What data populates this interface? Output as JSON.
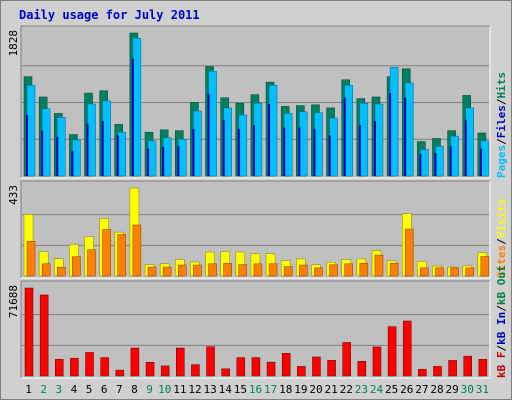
{
  "chart_data": {
    "type": "bar",
    "title": "Daily usage for July 2011",
    "categories": [
      "1",
      "2",
      "3",
      "4",
      "5",
      "6",
      "7",
      "8",
      "9",
      "10",
      "11",
      "12",
      "13",
      "14",
      "15",
      "16",
      "17",
      "18",
      "19",
      "20",
      "21",
      "22",
      "23",
      "24",
      "25",
      "26",
      "27",
      "28",
      "29",
      "30",
      "31"
    ],
    "weekend_days": [
      "2",
      "3",
      "9",
      "10",
      "16",
      "17",
      "23",
      "24",
      "30",
      "31"
    ],
    "colors": {
      "hits": "#008060",
      "files": "#0000c0",
      "pages": "#00c0ff",
      "visits": "#ffff00",
      "sites": "#ff8000",
      "kb_in": "#ff0000",
      "kb_out": "#008040",
      "kb_f": "#c00000",
      "weekday_label": "#000000",
      "weekend_label": "#00805c",
      "title": "#0000cc",
      "panel_bg": "#c0c0c0",
      "frame_bg": "#cfd0cf"
    },
    "panels": [
      {
        "name": "hits-files-pages",
        "ymax_label": "1828",
        "ylim": [
          0,
          1828
        ],
        "legend": [
          {
            "text": "Pages",
            "color": "#00c0ff"
          },
          {
            "text": "Files",
            "color": "#0000c0"
          },
          {
            "text": "Hits",
            "color": "#008060"
          }
        ],
        "series": [
          {
            "name": "Hits",
            "values": [
              1270,
              1010,
              800,
              530,
              1060,
              1090,
              660,
              1828,
              560,
              590,
              580,
              940,
              1400,
              1000,
              930,
              1040,
              1200,
              890,
              900,
              910,
              870,
              1230,
              990,
              1010,
              1270,
              1370,
              440,
              480,
              580,
              1030,
              550
            ]
          },
          {
            "name": "Files",
            "values": [
              780,
              580,
              500,
              320,
              670,
              700,
              520,
              1500,
              350,
              370,
              380,
              600,
              1050,
              720,
              600,
              650,
              920,
              620,
              620,
              600,
              520,
              1000,
              650,
              700,
              1060,
              1000,
              280,
              290,
              380,
              720,
              350
            ]
          },
          {
            "name": "Pages",
            "values": [
              1160,
              860,
              750,
              460,
              920,
              960,
              560,
              1760,
              450,
              490,
              470,
              830,
              1340,
              870,
              780,
              930,
              1160,
              800,
              820,
              810,
              740,
              1160,
              930,
              920,
              1390,
              1190,
              340,
              380,
              510,
              870,
              450
            ]
          }
        ]
      },
      {
        "name": "visits-sites",
        "ymax_label": "433",
        "ylim": [
          0,
          433
        ],
        "legend": [
          {
            "text": "Sites",
            "color": "#ff8000"
          },
          {
            "text": "Visits",
            "color": "#ffff00"
          }
        ],
        "series": [
          {
            "name": "Visits",
            "values": [
              303,
              120,
              85,
              155,
              193,
              283,
              216,
              433,
              56,
              60,
              81,
              69,
              118,
              119,
              118,
              110,
              110,
              76,
              84,
              55,
              68,
              81,
              84,
              125,
              75,
              307,
              72,
              49,
              44,
              50,
              114
            ]
          },
          {
            "name": "Sites",
            "values": [
              171,
              60,
              43,
              95,
              129,
              229,
              204,
              251,
              44,
              44,
              54,
              54,
              60,
              63,
              56,
              60,
              60,
              46,
              54,
              40,
              55,
              60,
              63,
              103,
              63,
              231,
              40,
              40,
              40,
              40,
              96
            ]
          }
        ]
      },
      {
        "name": "kbytes",
        "ymax_label": "71688",
        "ylim": [
          0,
          71688
        ],
        "legend": [
          {
            "text": "kB F",
            "color": "#c00000"
          },
          {
            "text": "/",
            "color": "#000000"
          },
          {
            "text": "kB In",
            "color": "#0000c0"
          },
          {
            "text": "/",
            "color": "#000000"
          },
          {
            "text": "kB Out",
            "color": "#008040"
          }
        ],
        "series": [
          {
            "name": "kB F",
            "values": [
              71688,
              66000,
              13600,
              14500,
              19200,
              15000,
              4800,
              22800,
              11200,
              8200,
              22800,
              9200,
              23900,
              5800,
              15000,
              15000,
              11300,
              18500,
              7800,
              15500,
              12800,
              27300,
              12000,
              23700,
              40200,
              44800,
              5500,
              7800,
              12700,
              16200,
              13600
            ]
          }
        ]
      }
    ],
    "legend_sep_color": "#000000"
  }
}
